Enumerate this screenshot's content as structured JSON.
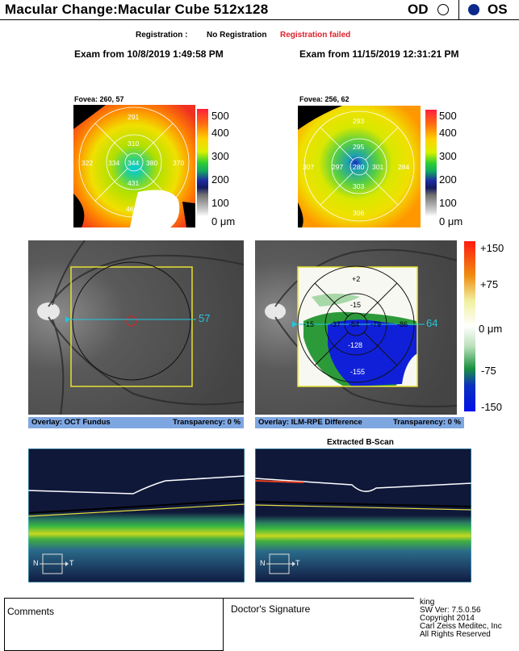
{
  "header": {
    "title": "Macular Change:Macular Cube 512x128",
    "od_label": "OD",
    "os_label": "OS",
    "selected_eye": "OS"
  },
  "registration": {
    "label": "Registration :",
    "value": "No Registration",
    "status": "Registration failed",
    "status_color": "#e0202a"
  },
  "exams": [
    {
      "title": "Exam from 10/8/2019 1:49:58 PM",
      "fovea": "Fovea: 260, 57",
      "thickness": {
        "center": "344",
        "inner_top": "310",
        "inner_nasal": "334",
        "inner_temporal": "380",
        "inner_bottom": "431",
        "outer_top": "291",
        "outer_nasal": "322",
        "outer_temporal": "370",
        "outer_bottom": "461"
      },
      "scan_line_label": "57",
      "overlay_label": "Overlay: OCT Fundus",
      "transparency_label": "Transparency: 0 %"
    },
    {
      "title": "Exam from 11/15/2019 12:31:21 PM",
      "fovea": "Fovea: 256, 62",
      "thickness": {
        "center": "280",
        "inner_top": "295",
        "inner_nasal": "297",
        "inner_temporal": "301",
        "inner_bottom": "303",
        "outer_top": "293",
        "outer_nasal": "307",
        "outer_temporal": "284",
        "outer_bottom": "306"
      },
      "difference": {
        "center": "-64",
        "inner_top": "-15",
        "inner_nasal": "-37",
        "inner_temporal": "-79",
        "inner_bottom": "-128",
        "outer_top": "+2",
        "outer_nasal": "-15",
        "outer_temporal": "-86",
        "outer_bottom": "-155"
      },
      "scan_line_label": "64",
      "overlay_label": "Overlay: ILM-RPE Difference",
      "transparency_label": "Transparency: 0 %"
    }
  ],
  "thickness_scale": [
    "500",
    "400",
    "300",
    "200",
    "100",
    "0 μm"
  ],
  "difference_scale": [
    "+150",
    "+75",
    "0 μm",
    "-75",
    "-150"
  ],
  "bscan": {
    "title": "Extracted B-Scan",
    "nasal": "N",
    "temporal": "T"
  },
  "footer": {
    "comments_label": "Comments",
    "signature_label": "Doctor's Signature",
    "user": "king",
    "sw_version": "SW Ver: 7.5.0.56",
    "copyright": "Copyright 2014",
    "company": "Carl Zeiss Meditec, Inc",
    "rights": "All Rights Reserved"
  },
  "colors": {
    "overlay_bar": "#7ea7e2",
    "scan_line": "#20c8e0",
    "box_outline": "#e8e030",
    "selected_eye": "#0c2a8c"
  }
}
